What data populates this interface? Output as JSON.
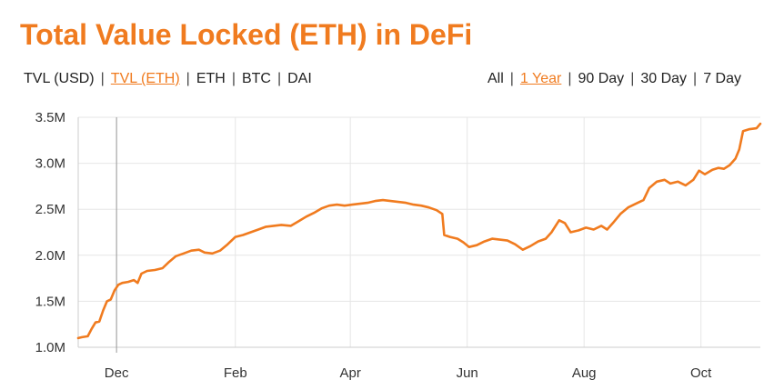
{
  "title": "Total Value Locked (ETH) in DeFi",
  "colors": {
    "accent": "#f07b1f",
    "grid": "#e6e6e6",
    "axis": "#cccccc",
    "cursor": "#999999"
  },
  "metric_options": [
    {
      "label": "TVL (USD)",
      "active": false
    },
    {
      "label": "TVL (ETH)",
      "active": true
    },
    {
      "label": "ETH",
      "active": false
    },
    {
      "label": "BTC",
      "active": false
    },
    {
      "label": "DAI",
      "active": false
    }
  ],
  "range_options": [
    {
      "label": "All",
      "active": false
    },
    {
      "label": "1 Year",
      "active": true
    },
    {
      "label": "90 Day",
      "active": false
    },
    {
      "label": "30 Day",
      "active": false
    },
    {
      "label": "7 Day",
      "active": false
    }
  ],
  "separator": "|",
  "chart_data": {
    "type": "line",
    "title": "Total Value Locked (ETH) in DeFi",
    "xlabel": "",
    "ylabel": "",
    "x_range": [
      "2019-11-11",
      "2020-11-01"
    ],
    "y_range": [
      1.0,
      3.5
    ],
    "grid": true,
    "x_ticks": [
      {
        "date": "2019-12-01",
        "label": "Dec"
      },
      {
        "date": "2020-02-01",
        "label": "Feb"
      },
      {
        "date": "2020-04-01",
        "label": "Apr"
      },
      {
        "date": "2020-06-01",
        "label": "Jun"
      },
      {
        "date": "2020-08-01",
        "label": "Aug"
      },
      {
        "date": "2020-10-01",
        "label": "Oct"
      }
    ],
    "y_ticks": [
      {
        "value": 1.0,
        "label": "1.0M"
      },
      {
        "value": 1.5,
        "label": "1.5M"
      },
      {
        "value": 2.0,
        "label": "2.0M"
      },
      {
        "value": 2.5,
        "label": "2.5M"
      },
      {
        "value": 3.0,
        "label": "3.0M"
      },
      {
        "value": 3.5,
        "label": "3.5M"
      }
    ],
    "cursor_date": "2019-12-01",
    "series": [
      {
        "color": "#f07b1f",
        "points": [
          [
            "2019-11-11",
            1.1
          ],
          [
            "2019-11-13",
            1.11
          ],
          [
            "2019-11-16",
            1.12
          ],
          [
            "2019-11-18",
            1.2
          ],
          [
            "2019-11-20",
            1.27
          ],
          [
            "2019-11-22",
            1.28
          ],
          [
            "2019-11-24",
            1.4
          ],
          [
            "2019-11-26",
            1.5
          ],
          [
            "2019-11-28",
            1.52
          ],
          [
            "2019-11-30",
            1.62
          ],
          [
            "2019-12-02",
            1.68
          ],
          [
            "2019-12-04",
            1.7
          ],
          [
            "2019-12-07",
            1.71
          ],
          [
            "2019-12-10",
            1.73
          ],
          [
            "2019-12-12",
            1.7
          ],
          [
            "2019-12-14",
            1.8
          ],
          [
            "2019-12-17",
            1.83
          ],
          [
            "2019-12-21",
            1.84
          ],
          [
            "2019-12-25",
            1.86
          ],
          [
            "2019-12-28",
            1.92
          ],
          [
            "2020-01-01",
            1.99
          ],
          [
            "2020-01-05",
            2.02
          ],
          [
            "2020-01-09",
            2.05
          ],
          [
            "2020-01-13",
            2.06
          ],
          [
            "2020-01-16",
            2.03
          ],
          [
            "2020-01-20",
            2.02
          ],
          [
            "2020-01-24",
            2.05
          ],
          [
            "2020-01-28",
            2.12
          ],
          [
            "2020-02-01",
            2.2
          ],
          [
            "2020-02-05",
            2.22
          ],
          [
            "2020-02-09",
            2.25
          ],
          [
            "2020-02-13",
            2.28
          ],
          [
            "2020-02-17",
            2.31
          ],
          [
            "2020-02-21",
            2.32
          ],
          [
            "2020-02-25",
            2.33
          ],
          [
            "2020-03-01",
            2.32
          ],
          [
            "2020-03-05",
            2.37
          ],
          [
            "2020-03-09",
            2.42
          ],
          [
            "2020-03-13",
            2.46
          ],
          [
            "2020-03-17",
            2.51
          ],
          [
            "2020-03-21",
            2.54
          ],
          [
            "2020-03-25",
            2.55
          ],
          [
            "2020-03-29",
            2.54
          ],
          [
            "2020-04-02",
            2.55
          ],
          [
            "2020-04-06",
            2.56
          ],
          [
            "2020-04-10",
            2.57
          ],
          [
            "2020-04-14",
            2.59
          ],
          [
            "2020-04-18",
            2.6
          ],
          [
            "2020-04-22",
            2.59
          ],
          [
            "2020-04-26",
            2.58
          ],
          [
            "2020-04-30",
            2.57
          ],
          [
            "2020-05-04",
            2.55
          ],
          [
            "2020-05-08",
            2.54
          ],
          [
            "2020-05-12",
            2.52
          ],
          [
            "2020-05-16",
            2.49
          ],
          [
            "2020-05-19",
            2.45
          ],
          [
            "2020-05-20",
            2.22
          ],
          [
            "2020-05-23",
            2.2
          ],
          [
            "2020-05-27",
            2.18
          ],
          [
            "2020-05-30",
            2.14
          ],
          [
            "2020-06-02",
            2.09
          ],
          [
            "2020-06-06",
            2.11
          ],
          [
            "2020-06-10",
            2.15
          ],
          [
            "2020-06-14",
            2.18
          ],
          [
            "2020-06-18",
            2.17
          ],
          [
            "2020-06-22",
            2.16
          ],
          [
            "2020-06-26",
            2.12
          ],
          [
            "2020-06-30",
            2.06
          ],
          [
            "2020-07-04",
            2.1
          ],
          [
            "2020-07-08",
            2.15
          ],
          [
            "2020-07-12",
            2.18
          ],
          [
            "2020-07-15",
            2.25
          ],
          [
            "2020-07-19",
            2.38
          ],
          [
            "2020-07-22",
            2.35
          ],
          [
            "2020-07-25",
            2.25
          ],
          [
            "2020-07-29",
            2.27
          ],
          [
            "2020-08-02",
            2.3
          ],
          [
            "2020-08-06",
            2.28
          ],
          [
            "2020-08-10",
            2.32
          ],
          [
            "2020-08-13",
            2.28
          ],
          [
            "2020-08-16",
            2.35
          ],
          [
            "2020-08-20",
            2.45
          ],
          [
            "2020-08-24",
            2.52
          ],
          [
            "2020-08-28",
            2.56
          ],
          [
            "2020-09-01",
            2.6
          ],
          [
            "2020-09-04",
            2.73
          ],
          [
            "2020-09-08",
            2.8
          ],
          [
            "2020-09-12",
            2.82
          ],
          [
            "2020-09-15",
            2.78
          ],
          [
            "2020-09-19",
            2.8
          ],
          [
            "2020-09-23",
            2.76
          ],
          [
            "2020-09-27",
            2.82
          ],
          [
            "2020-09-30",
            2.92
          ],
          [
            "2020-10-03",
            2.88
          ],
          [
            "2020-10-07",
            2.93
          ],
          [
            "2020-10-10",
            2.95
          ],
          [
            "2020-10-13",
            2.94
          ],
          [
            "2020-10-16",
            2.98
          ],
          [
            "2020-10-19",
            3.05
          ],
          [
            "2020-10-21",
            3.15
          ],
          [
            "2020-10-23",
            3.35
          ],
          [
            "2020-10-26",
            3.37
          ],
          [
            "2020-10-30",
            3.38
          ],
          [
            "2020-11-01",
            3.43
          ]
        ]
      }
    ]
  }
}
